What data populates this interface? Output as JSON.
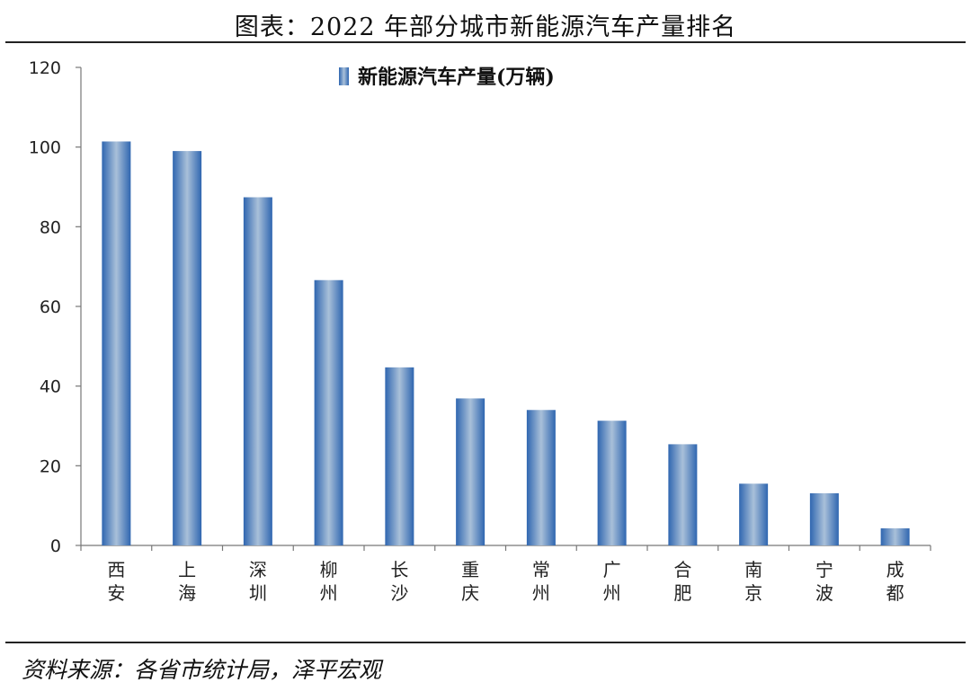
{
  "title": "图表：2022 年部分城市新能源汽车产量排名",
  "source": "资料来源：各省市统计局，泽平宏观",
  "chart_data": {
    "type": "bar",
    "categories": [
      "西安",
      "上海",
      "深圳",
      "柳州",
      "长沙",
      "重庆",
      "常州",
      "广州",
      "合肥",
      "南京",
      "宁波",
      "成都"
    ],
    "series": [
      {
        "name": "新能源汽车产量(万辆)",
        "values": [
          101.4,
          99.0,
          87.4,
          66.6,
          44.7,
          36.9,
          34.0,
          31.3,
          25.4,
          15.5,
          13.1,
          4.3
        ]
      }
    ],
    "ylim": [
      0,
      120
    ],
    "yticks": [
      0,
      20,
      40,
      60,
      80,
      100,
      120
    ],
    "legend_position": "top-center",
    "grid": false,
    "bar_color": "#3a72b8"
  }
}
